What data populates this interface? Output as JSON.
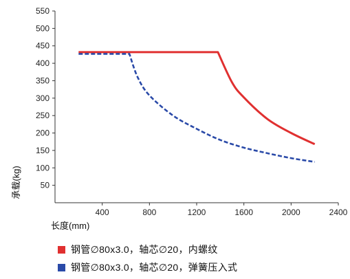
{
  "chart_data": {
    "type": "line",
    "title": "",
    "xlabel": "长度(mm)",
    "ylabel": "承载(kg)",
    "xlim": [
      0,
      2400
    ],
    "ylim": [
      0,
      550
    ],
    "xticks": [
      400,
      800,
      1200,
      1600,
      2000,
      2400
    ],
    "yticks": [
      50,
      100,
      150,
      200,
      250,
      300,
      350,
      400,
      450,
      500,
      550
    ],
    "grid": false,
    "legend_position": "bottom",
    "series": [
      {
        "name": "钢管∅80x3.0，轴芯∅20，内螺纹",
        "color": "#e03030",
        "style": "solid",
        "x": [
          200,
          400,
          600,
          800,
          1000,
          1200,
          1380,
          1500,
          1600,
          1800,
          2000,
          2200
        ],
        "y": [
          432,
          432,
          432,
          432,
          432,
          432,
          432,
          345,
          302,
          240,
          200,
          168
        ]
      },
      {
        "name": "钢管∅80x3.0，轴芯∅20，弹簧压入式",
        "color": "#2a4aa8",
        "style": "dashed",
        "x": [
          200,
          400,
          630,
          700,
          800,
          1000,
          1200,
          1400,
          1600,
          1800,
          2000,
          2200
        ],
        "y": [
          427,
          427,
          427,
          360,
          308,
          250,
          212,
          180,
          158,
          142,
          128,
          117
        ]
      }
    ]
  }
}
